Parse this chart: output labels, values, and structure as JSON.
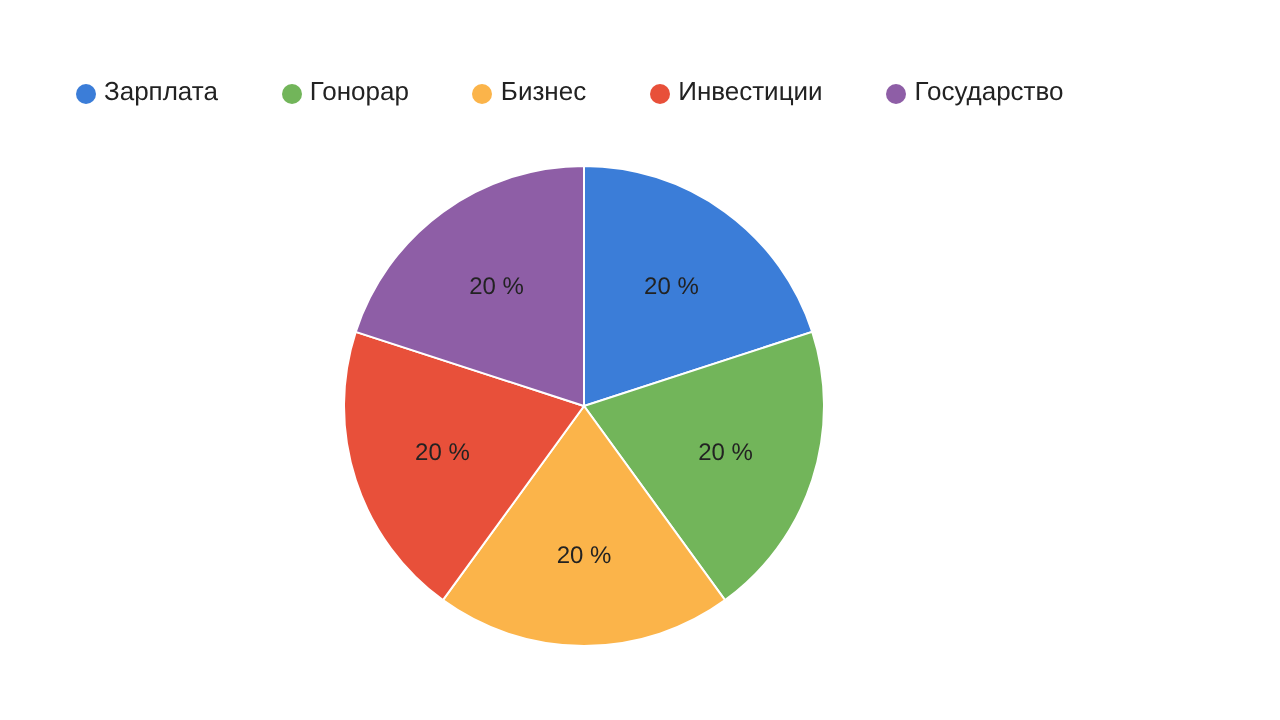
{
  "chart_data": {
    "type": "pie",
    "categories": [
      "Зарплата",
      "Гонорар",
      "Бизнес",
      "Инвестиции",
      "Государство"
    ],
    "values": [
      20,
      20,
      20,
      20,
      20
    ],
    "colors": [
      "#3b7dd8",
      "#72b55a",
      "#fbb44a",
      "#e8503a",
      "#8e5ea6"
    ],
    "value_labels": [
      "20 %",
      "20 %",
      "20 %",
      "20 %",
      "20 %"
    ],
    "legend": "top"
  }
}
